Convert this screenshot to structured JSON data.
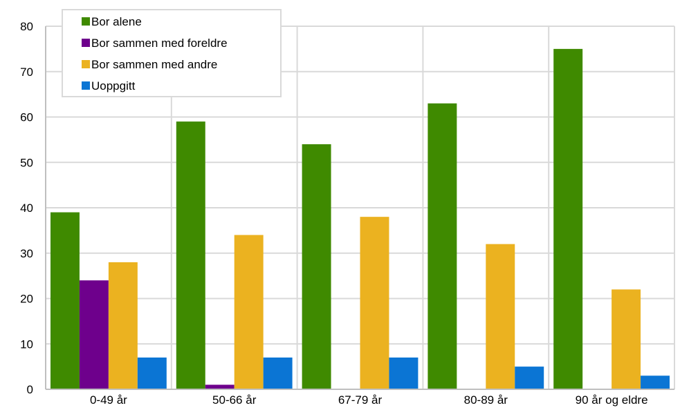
{
  "chart_data": {
    "type": "bar",
    "title": "",
    "xlabel": "",
    "ylabel": "",
    "ylim": [
      0,
      80
    ],
    "yticks": [
      "0",
      "10",
      "20",
      "30",
      "40",
      "50",
      "60",
      "70",
      "80"
    ],
    "categories": [
      "0-49 år",
      "50-66 år",
      "67-79 år",
      "80-89 år",
      "90 år og eldre"
    ],
    "series": [
      {
        "name": "Bor alene",
        "color": "#3f8a00",
        "values": [
          39,
          59,
          54,
          63,
          75
        ]
      },
      {
        "name": "Bor sammen med foreldre",
        "color": "#6e008c",
        "values": [
          24,
          1,
          0,
          0,
          0
        ]
      },
      {
        "name": "Bor sammen med andre",
        "color": "#ebb220",
        "values": [
          28,
          34,
          38,
          32,
          22
        ]
      },
      {
        "name": "Uoppgitt",
        "color": "#0b75d4",
        "values": [
          7,
          7,
          7,
          5,
          3
        ]
      }
    ],
    "grid": true,
    "legend": "top-left"
  }
}
